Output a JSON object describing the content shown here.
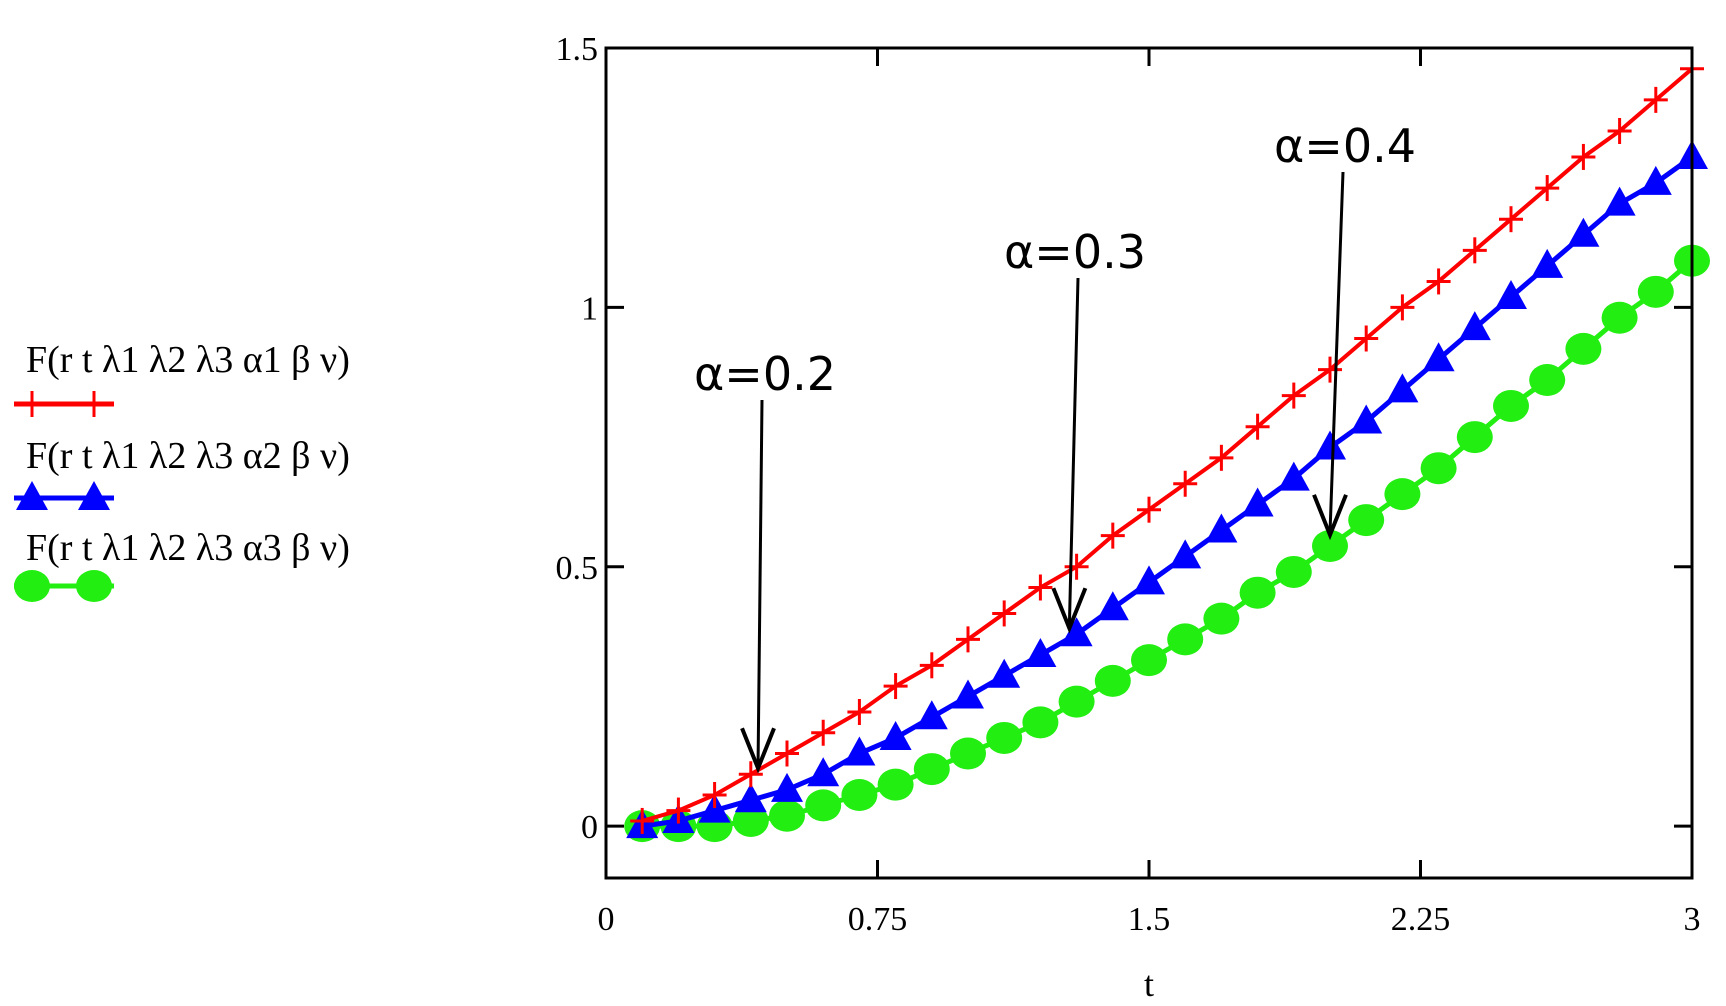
{
  "chart_data": {
    "type": "line",
    "title": "",
    "xlabel": "t",
    "ylabel": "",
    "xlim": [
      0,
      3
    ],
    "ylim": [
      -0.1,
      1.5
    ],
    "xticks": [
      "0",
      "0.75",
      "1.5",
      "2.25",
      "3"
    ],
    "yticks": [
      "0",
      "0.5",
      "1",
      "1.5"
    ],
    "grid": false,
    "legend_position": "left",
    "x": [
      0.1,
      0.2,
      0.3,
      0.4,
      0.5,
      0.6,
      0.7,
      0.8,
      0.9,
      1.0,
      1.1,
      1.2,
      1.3,
      1.4,
      1.5,
      1.6,
      1.7,
      1.8,
      1.9,
      2.0,
      2.1,
      2.2,
      2.3,
      2.4,
      2.5,
      2.6,
      2.7,
      2.8,
      2.9,
      3.0
    ],
    "series": [
      {
        "name": "F(r  t  λ1  λ2  λ3  α1  β  ν)",
        "color": "#ff0000",
        "marker": "plus",
        "values": [
          0.01,
          0.03,
          0.06,
          0.1,
          0.14,
          0.18,
          0.22,
          0.27,
          0.31,
          0.36,
          0.41,
          0.46,
          0.5,
          0.56,
          0.61,
          0.66,
          0.71,
          0.77,
          0.83,
          0.88,
          0.94,
          1.0,
          1.05,
          1.11,
          1.17,
          1.23,
          1.29,
          1.34,
          1.4,
          1.46
        ]
      },
      {
        "name": "F(r  t  λ1  λ2  λ3  α2  β  ν)",
        "color": "#0000ff",
        "marker": "triangle",
        "values": [
          0.0,
          0.01,
          0.03,
          0.05,
          0.07,
          0.1,
          0.14,
          0.17,
          0.21,
          0.25,
          0.29,
          0.33,
          0.37,
          0.42,
          0.47,
          0.52,
          0.57,
          0.62,
          0.67,
          0.73,
          0.78,
          0.84,
          0.9,
          0.96,
          1.02,
          1.08,
          1.14,
          1.2,
          1.24,
          1.29
        ]
      },
      {
        "name": "F(r  t  λ1  λ2  λ3  α3  β  ν)",
        "color": "#22ee11",
        "marker": "circle",
        "values": [
          0.0,
          0.0,
          0.0,
          0.01,
          0.02,
          0.04,
          0.06,
          0.08,
          0.11,
          0.14,
          0.17,
          0.2,
          0.24,
          0.28,
          0.32,
          0.36,
          0.4,
          0.45,
          0.49,
          0.54,
          0.59,
          0.64,
          0.69,
          0.75,
          0.81,
          0.86,
          0.92,
          0.98,
          1.03,
          1.09
        ]
      }
    ],
    "annotations": [
      {
        "text": "α=0.2",
        "x": 0.42,
        "y": 0.1
      },
      {
        "text": "α=0.3",
        "x": 1.28,
        "y": 0.37
      },
      {
        "text": "α=0.4",
        "x": 2.0,
        "y": 0.55
      }
    ]
  }
}
